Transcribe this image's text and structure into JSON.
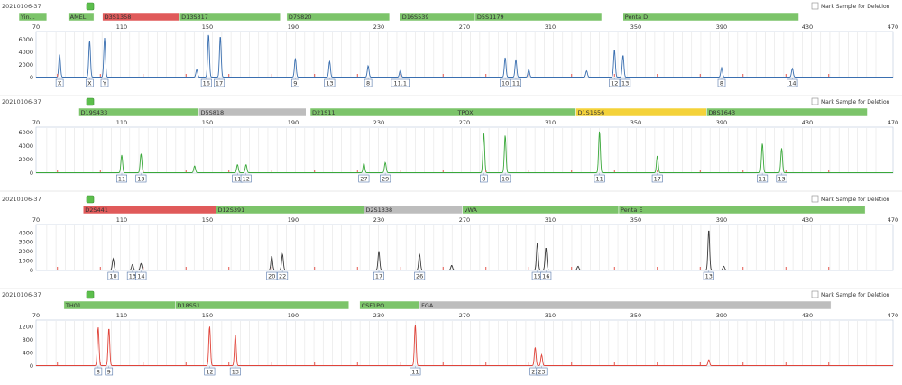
{
  "chart_data": [
    {
      "type": "line",
      "sample_id": "20210106-37",
      "dye": "blue",
      "color": "#3a6fb0",
      "x_ticks": [
        "70",
        "110",
        "150",
        "190",
        "230",
        "270",
        "310",
        "350",
        "390",
        "430",
        "470"
      ],
      "y_ticks": [
        "0",
        "2000",
        "4000",
        "6000"
      ],
      "ylim": [
        0,
        7000
      ],
      "loci": [
        {
          "name": "Yin...",
          "start": 62,
          "end": 75,
          "color": "#7cc46a"
        },
        {
          "name": "AMEL",
          "start": 85,
          "end": 97,
          "color": "#7cc46a"
        },
        {
          "name": "D3S1358",
          "start": 101,
          "end": 137,
          "color": "#e05a5a"
        },
        {
          "name": "D13S317",
          "start": 137,
          "end": 184,
          "color": "#7cc46a"
        },
        {
          "name": "D7S820",
          "start": 187,
          "end": 235,
          "color": "#7cc46a"
        },
        {
          "name": "D16S539",
          "start": 240,
          "end": 275,
          "color": "#7cc46a"
        },
        {
          "name": "D5S1179",
          "start": 275,
          "end": 334,
          "color": "#7cc46a"
        },
        {
          "name": "Penta D",
          "start": 344,
          "end": 426,
          "color": "#7cc46a"
        }
      ],
      "peaks": [
        {
          "x": 81,
          "h": 3600
        },
        {
          "x": 95,
          "h": 5800
        },
        {
          "x": 102,
          "h": 6200
        },
        {
          "x": 150.5,
          "h": 6800
        },
        {
          "x": 156,
          "h": 6500
        },
        {
          "x": 145,
          "h": 1200
        },
        {
          "x": 191,
          "h": 3000
        },
        {
          "x": 207,
          "h": 2500
        },
        {
          "x": 225,
          "h": 1800
        },
        {
          "x": 240,
          "h": 1100
        },
        {
          "x": 289,
          "h": 3100
        },
        {
          "x": 294,
          "h": 2800
        },
        {
          "x": 300,
          "h": 1200
        },
        {
          "x": 340,
          "h": 4300
        },
        {
          "x": 344,
          "h": 3500
        },
        {
          "x": 327,
          "h": 1000
        },
        {
          "x": 390,
          "h": 1500
        },
        {
          "x": 423,
          "h": 1400
        }
      ],
      "alleles": [
        {
          "x": 81,
          "label": "X"
        },
        {
          "x": 95,
          "label": "X"
        },
        {
          "x": 102,
          "label": "Y"
        },
        {
          "x": 149.5,
          "label": "16"
        },
        {
          "x": 155.5,
          "label": "17"
        },
        {
          "x": 191,
          "label": "9"
        },
        {
          "x": 207,
          "label": "13"
        },
        {
          "x": 225,
          "label": "8"
        },
        {
          "x": 240,
          "label": "11.1"
        },
        {
          "x": 289,
          "label": "10"
        },
        {
          "x": 294,
          "label": "11"
        },
        {
          "x": 340,
          "label": "12"
        },
        {
          "x": 345,
          "label": "13"
        },
        {
          "x": 390,
          "label": "8"
        },
        {
          "x": 423,
          "label": "14"
        }
      ],
      "mark_label": "Mark Sample for Deletion"
    },
    {
      "type": "line",
      "sample_id": "20210106-37",
      "dye": "green",
      "color": "#3aa83a",
      "x_ticks": [
        "70",
        "110",
        "150",
        "190",
        "230",
        "270",
        "310",
        "350",
        "390",
        "430",
        "470"
      ],
      "y_ticks": [
        "0",
        "2000",
        "4000",
        "6000"
      ],
      "ylim": [
        0,
        6500
      ],
      "loci": [
        {
          "name": "D19S433",
          "start": 90,
          "end": 146,
          "color": "#7cc46a"
        },
        {
          "name": "D5S818",
          "start": 146,
          "end": 196,
          "color": "#bdbdbd"
        },
        {
          "name": "D21S11",
          "start": 198,
          "end": 266,
          "color": "#7cc46a"
        },
        {
          "name": "TPOX",
          "start": 266,
          "end": 322,
          "color": "#7cc46a"
        },
        {
          "name": "D1S1656",
          "start": 322,
          "end": 383,
          "color": "#f4d23a"
        },
        {
          "name": "D8S1643",
          "start": 383,
          "end": 458,
          "color": "#7cc46a"
        }
      ],
      "peaks": [
        {
          "x": 110,
          "h": 2600
        },
        {
          "x": 119,
          "h": 2800
        },
        {
          "x": 144,
          "h": 1000
        },
        {
          "x": 164,
          "h": 1200
        },
        {
          "x": 168,
          "h": 1200
        },
        {
          "x": 223,
          "h": 1400
        },
        {
          "x": 233,
          "h": 1500
        },
        {
          "x": 279,
          "h": 5800
        },
        {
          "x": 289,
          "h": 5500
        },
        {
          "x": 333,
          "h": 6100
        },
        {
          "x": 360,
          "h": 2500
        },
        {
          "x": 409,
          "h": 4300
        },
        {
          "x": 418,
          "h": 3600
        }
      ],
      "alleles": [
        {
          "x": 110,
          "label": "11"
        },
        {
          "x": 119,
          "label": "13"
        },
        {
          "x": 164,
          "label": "11"
        },
        {
          "x": 168,
          "label": "12"
        },
        {
          "x": 223,
          "label": "27"
        },
        {
          "x": 233,
          "label": "29"
        },
        {
          "x": 279,
          "label": "8"
        },
        {
          "x": 289,
          "label": "10"
        },
        {
          "x": 333,
          "label": "11"
        },
        {
          "x": 360,
          "label": "17"
        },
        {
          "x": 409,
          "label": "11"
        },
        {
          "x": 418,
          "label": "13"
        }
      ],
      "mark_label": "Mark Sample for Deletion"
    },
    {
      "type": "line",
      "sample_id": "20210106-37",
      "dye": "yellow",
      "color": "#3a3a3a",
      "x_ticks": [
        "70",
        "110",
        "150",
        "190",
        "230",
        "270",
        "310",
        "350",
        "390",
        "430",
        "470"
      ],
      "y_ticks": [
        "0",
        "1000",
        "2000",
        "3000",
        "4000"
      ],
      "ylim": [
        0,
        4700
      ],
      "loci": [
        {
          "name": "D2S441",
          "start": 92,
          "end": 154,
          "color": "#e05a5a"
        },
        {
          "name": "D12S391",
          "start": 154,
          "end": 223,
          "color": "#7cc46a"
        },
        {
          "name": "D2S1338",
          "start": 223,
          "end": 269,
          "color": "#bdbdbd"
        },
        {
          "name": "vWA",
          "start": 269,
          "end": 342,
          "color": "#7cc46a"
        },
        {
          "name": "Penta E",
          "start": 342,
          "end": 457,
          "color": "#7cc46a"
        }
      ],
      "peaks": [
        {
          "x": 106,
          "h": 1200
        },
        {
          "x": 115,
          "h": 600
        },
        {
          "x": 119,
          "h": 700
        },
        {
          "x": 180,
          "h": 1500
        },
        {
          "x": 185,
          "h": 1700
        },
        {
          "x": 230,
          "h": 2000
        },
        {
          "x": 249,
          "h": 1700
        },
        {
          "x": 264,
          "h": 500
        },
        {
          "x": 304,
          "h": 2900
        },
        {
          "x": 308,
          "h": 2400
        },
        {
          "x": 323,
          "h": 400
        },
        {
          "x": 384,
          "h": 4300
        },
        {
          "x": 391,
          "h": 400
        }
      ],
      "alleles": [
        {
          "x": 106,
          "label": "10"
        },
        {
          "x": 115,
          "label": "13"
        },
        {
          "x": 119,
          "label": "14"
        },
        {
          "x": 180,
          "label": "20"
        },
        {
          "x": 185,
          "label": "22"
        },
        {
          "x": 230,
          "label": "17"
        },
        {
          "x": 249,
          "label": "26"
        },
        {
          "x": 304,
          "label": "15"
        },
        {
          "x": 308,
          "label": "16"
        },
        {
          "x": 384,
          "label": "13"
        }
      ],
      "mark_label": "Mark Sample for Deletion"
    },
    {
      "type": "line",
      "sample_id": "20210106-37",
      "dye": "red",
      "color": "#e0443a",
      "x_ticks": [
        "70",
        "110",
        "150",
        "190",
        "230",
        "270",
        "310",
        "350",
        "390",
        "430",
        "470"
      ],
      "y_ticks": [
        "0",
        "400",
        "800",
        "1200"
      ],
      "ylim": [
        0,
        1350
      ],
      "loci": [
        {
          "name": "TH01",
          "start": 83,
          "end": 135,
          "color": "#7cc46a"
        },
        {
          "name": "D18S51",
          "start": 135,
          "end": 216,
          "color": "#7cc46a"
        },
        {
          "name": "CSF1PO",
          "start": 221,
          "end": 249,
          "color": "#7cc46a"
        },
        {
          "name": "FGA",
          "start": 249,
          "end": 441,
          "color": "#bdbdbd"
        }
      ],
      "peaks": [
        {
          "x": 99,
          "h": 1180
        },
        {
          "x": 104,
          "h": 1150
        },
        {
          "x": 151,
          "h": 1200
        },
        {
          "x": 163,
          "h": 950
        },
        {
          "x": 247,
          "h": 1250
        },
        {
          "x": 303,
          "h": 560
        },
        {
          "x": 306,
          "h": 330
        },
        {
          "x": 384,
          "h": 180
        }
      ],
      "alleles": [
        {
          "x": 99,
          "label": "8"
        },
        {
          "x": 104,
          "label": "9"
        },
        {
          "x": 151,
          "label": "12"
        },
        {
          "x": 163,
          "label": "13"
        },
        {
          "x": 247,
          "label": "11"
        },
        {
          "x": 303,
          "label": "22"
        },
        {
          "x": 306,
          "label": "23"
        }
      ],
      "mark_label": "Mark Sample for Deletion"
    }
  ]
}
